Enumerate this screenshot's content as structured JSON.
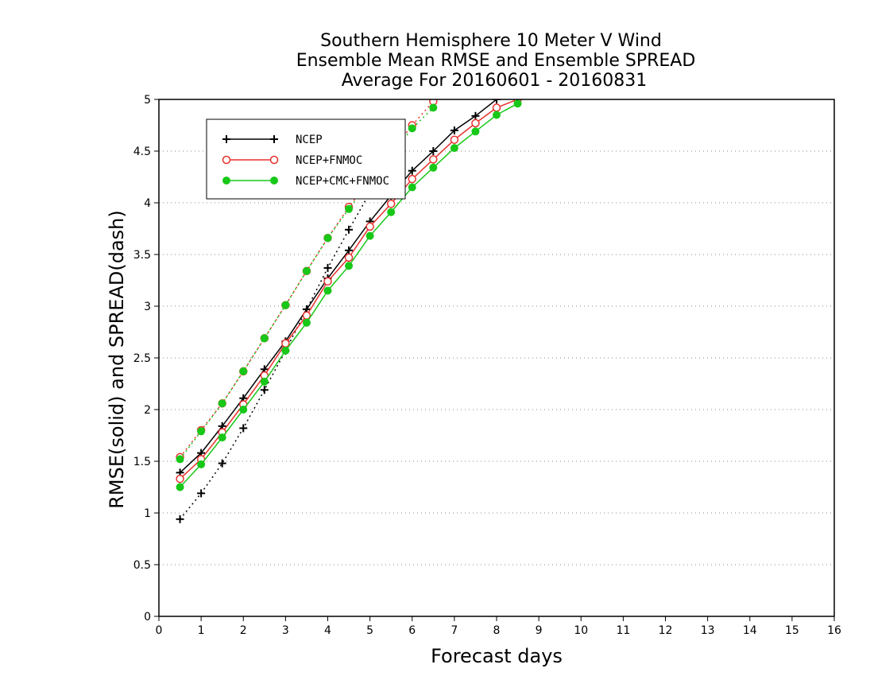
{
  "chart_data": {
    "type": "line",
    "title": [
      "Southern Hemisphere 10 Meter V Wind",
      "Ensemble Mean RMSE and Ensemble SPREAD",
      "Average For 20160601 - 20160831"
    ],
    "xlabel": "Forecast days",
    "ylabel": "RMSE(solid) and SPREAD(dash)",
    "xlim": [
      0,
      16
    ],
    "ylim": [
      0,
      5
    ],
    "xticks": [
      "0",
      "1",
      "2",
      "3",
      "4",
      "5",
      "6",
      "7",
      "8",
      "9",
      "10",
      "11",
      "12",
      "13",
      "14",
      "15",
      "16"
    ],
    "yticks": [
      "0",
      "0.5",
      "1",
      "1.5",
      "2",
      "2.5",
      "3",
      "3.5",
      "4",
      "4.5",
      "5"
    ],
    "grid": "horizontal dotted",
    "legend_position": "top-left",
    "series": [
      {
        "name": "NCEP",
        "color": "#000000",
        "marker": "plus",
        "rmse": {
          "x": [
            0.5,
            1,
            1.5,
            2,
            2.5,
            3,
            3.5,
            4,
            4.5,
            5,
            5.5,
            6,
            6.5,
            7,
            7.5,
            8
          ],
          "y": [
            1.39,
            1.58,
            1.84,
            2.11,
            2.39,
            2.66,
            2.97,
            3.27,
            3.54,
            3.82,
            4.07,
            4.31,
            4.5,
            4.7,
            4.84,
            5.0
          ]
        },
        "spread": {
          "x": [
            0.5,
            1,
            1.5,
            2,
            2.5,
            3,
            3.5,
            4,
            4.5,
            5
          ],
          "y": [
            0.94,
            1.19,
            1.48,
            1.82,
            2.19,
            2.57,
            2.97,
            3.37,
            3.74,
            4.1
          ]
        }
      },
      {
        "name": "NCEP+FNMOC",
        "color": "#e8312d",
        "marker": "open-circle",
        "rmse": {
          "x": [
            0.5,
            1,
            1.5,
            2,
            2.5,
            3,
            3.5,
            4,
            4.5,
            5,
            5.5,
            6,
            6.5,
            7,
            7.5,
            8,
            8.5
          ],
          "y": [
            1.33,
            1.52,
            1.78,
            2.05,
            2.33,
            2.64,
            2.91,
            3.24,
            3.47,
            3.77,
            3.99,
            4.23,
            4.42,
            4.61,
            4.77,
            4.92,
            5.0
          ]
        },
        "spread": {
          "x": [
            0.5,
            1,
            1.5,
            2,
            2.5,
            3,
            3.5,
            4,
            4.5,
            6,
            6.5
          ],
          "y": [
            1.54,
            1.8,
            2.06,
            2.37,
            2.69,
            3.01,
            3.34,
            3.66,
            3.96,
            4.75,
            4.98
          ]
        }
      },
      {
        "name": "NCEP+CMC+FNMOC",
        "color": "#18c818",
        "marker": "filled-circle",
        "rmse": {
          "x": [
            0.5,
            1,
            1.5,
            2,
            2.5,
            3,
            3.5,
            4,
            4.5,
            5,
            5.5,
            6,
            6.5,
            7,
            7.5,
            8,
            8.5
          ],
          "y": [
            1.25,
            1.47,
            1.73,
            2.0,
            2.27,
            2.57,
            2.84,
            3.15,
            3.39,
            3.68,
            3.91,
            4.15,
            4.34,
            4.53,
            4.69,
            4.85,
            4.96
          ]
        },
        "spread": {
          "x": [
            0.5,
            1,
            1.5,
            2,
            2.5,
            3,
            3.5,
            4,
            4.5,
            6,
            6.5
          ],
          "y": [
            1.52,
            1.79,
            2.06,
            2.37,
            2.69,
            3.01,
            3.34,
            3.66,
            3.94,
            4.72,
            4.92
          ]
        }
      }
    ]
  }
}
